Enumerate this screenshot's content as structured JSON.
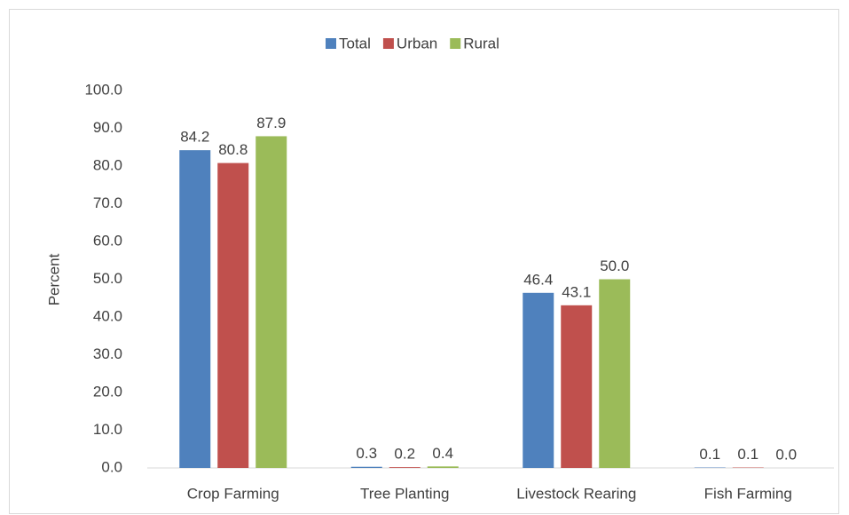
{
  "chart_data": {
    "type": "bar",
    "y_label": "Percent",
    "categories": [
      "Crop Farming",
      "Tree Planting",
      "Livestock Rearing",
      "Fish Farming"
    ],
    "series": [
      {
        "name": "Total",
        "color": "#4f81bd",
        "values": [
          84.2,
          0.3,
          46.4,
          0.1
        ],
        "value_labels": [
          "84.2",
          "0.3",
          "46.4",
          "0.1"
        ]
      },
      {
        "name": "Urban",
        "color": "#c0504d",
        "values": [
          80.8,
          0.2,
          43.1,
          0.1
        ],
        "value_labels": [
          "80.8",
          "0.2",
          "43.1",
          "0.1"
        ]
      },
      {
        "name": "Rural",
        "color": "#9bbb59",
        "values": [
          87.9,
          0.4,
          50,
          0
        ],
        "value_labels": [
          "87.9",
          "0.4",
          "50.0",
          "0.0"
        ]
      }
    ],
    "ylim": [
      0,
      100
    ],
    "yticks": [
      {
        "value": 0,
        "label": "0.0"
      },
      {
        "value": 10,
        "label": "10.0"
      },
      {
        "value": 20,
        "label": "20.0"
      },
      {
        "value": 30,
        "label": "30.0"
      },
      {
        "value": 40,
        "label": "40.0"
      },
      {
        "value": 50,
        "label": "50.0"
      },
      {
        "value": 60,
        "label": "60.0"
      },
      {
        "value": 70,
        "label": "70.0"
      },
      {
        "value": 80,
        "label": "80.0"
      },
      {
        "value": 90,
        "label": "90.0"
      },
      {
        "value": 100,
        "label": "100.0"
      }
    ],
    "grid": false,
    "legend": "top"
  }
}
